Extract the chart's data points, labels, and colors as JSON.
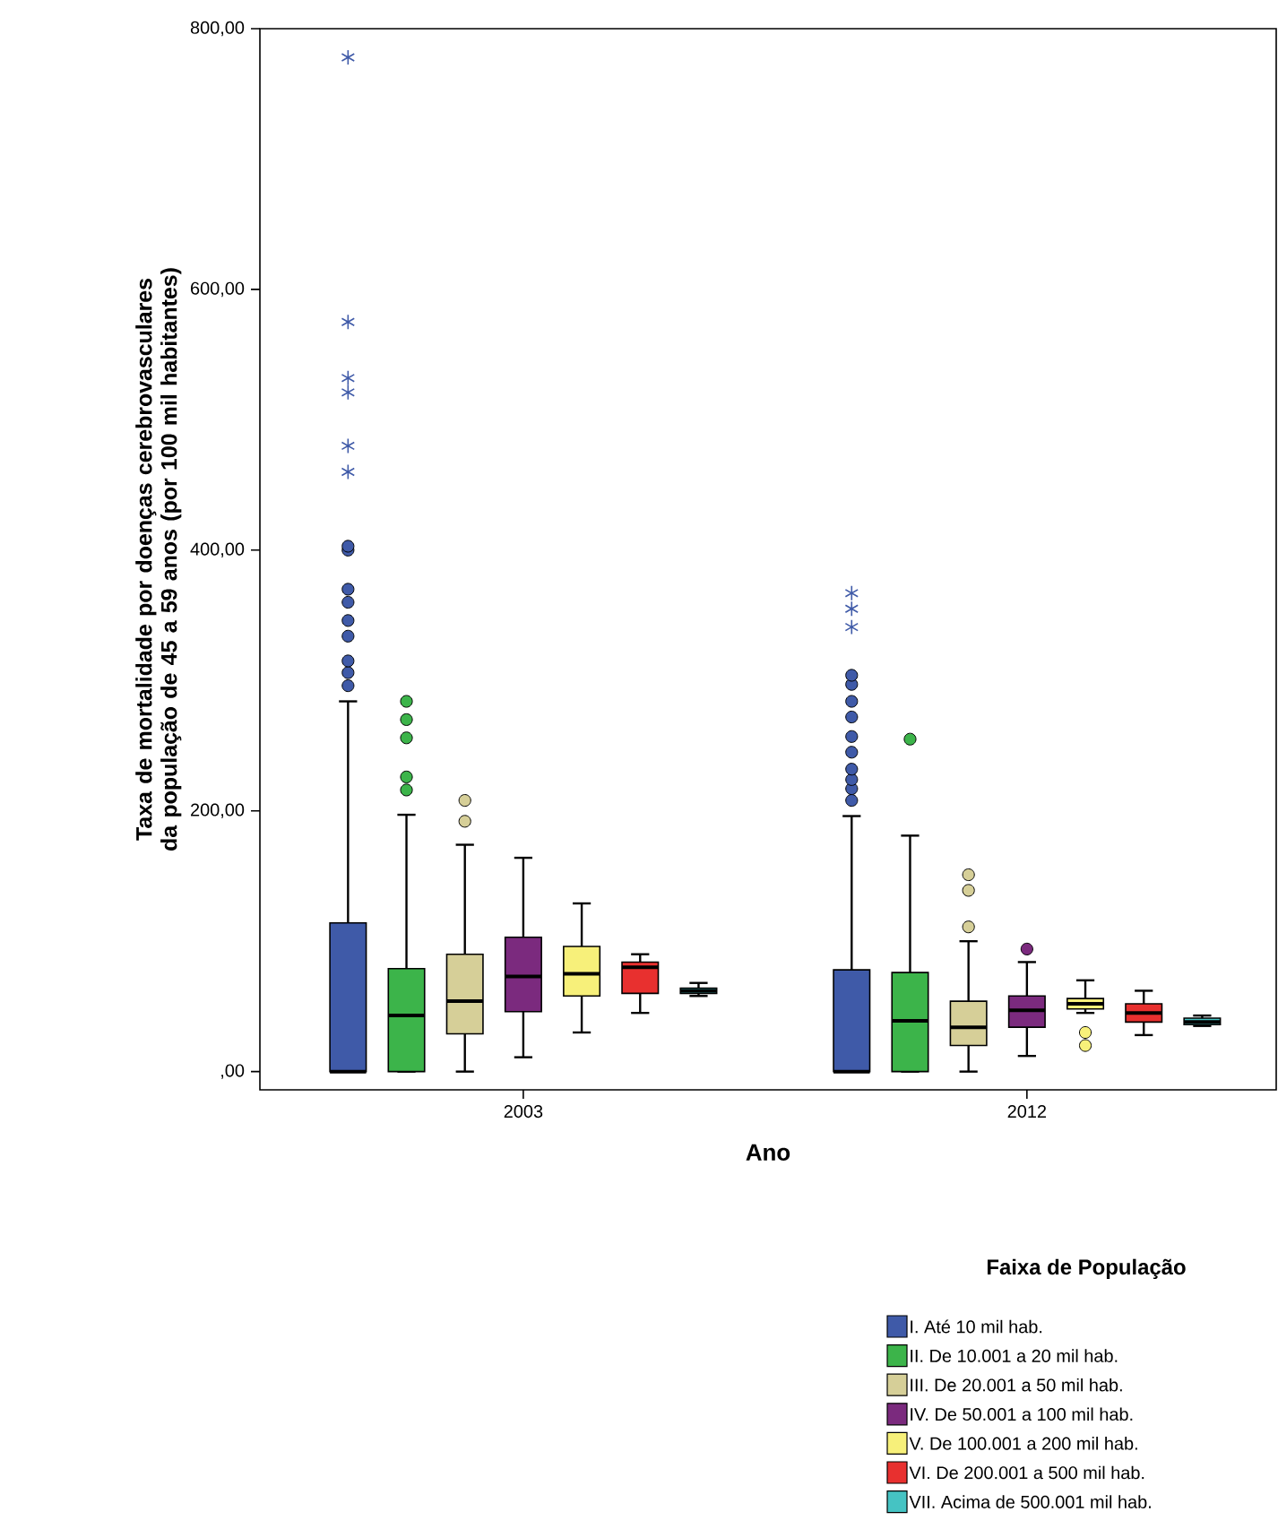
{
  "chart_data": {
    "type": "box",
    "xlabel": "Ano",
    "ylabel": "Taxa de mortalidade por doenças cerebrovasculares da população de 45 a 59 anos (por 100 mil habitantes)",
    "categories": [
      "2003",
      "2012"
    ],
    "ylim": [
      -14,
      800
    ],
    "yticks": [
      {
        "value": 0,
        "label": ",00"
      },
      {
        "value": 200,
        "label": "200,00"
      },
      {
        "value": 400,
        "label": "400,00"
      },
      {
        "value": 600,
        "label": "600,00"
      },
      {
        "value": 800,
        "label": "800,00"
      }
    ],
    "legend": "bottom right",
    "legend_title": "Faixa de População",
    "series": [
      {
        "name": "I. Até 10 mil hab.",
        "color": "#3f5aa8",
        "boxes": [
          {
            "low": 0,
            "q1": 0,
            "median": 0,
            "q3": 114,
            "high": 284,
            "outliers": [
              296,
              306,
              315,
              334,
              346,
              360,
              370,
              400,
              403,
              460,
              480,
              521,
              532,
              575,
              778
            ]
          },
          {
            "low": 0,
            "q1": 0,
            "median": 0,
            "q3": 78,
            "high": 196,
            "outliers": [
              208,
              217,
              224,
              232,
              245,
              257,
              272,
              284,
              297,
              304,
              341,
              355,
              367
            ]
          }
        ]
      },
      {
        "name": "II. De 10.001 a 20 mil hab.",
        "color": "#3cb44a",
        "boxes": [
          {
            "low": 0,
            "q1": 0,
            "median": 43,
            "q3": 79,
            "high": 197,
            "outliers": [
              216,
              226,
              256,
              270,
              284
            ]
          },
          {
            "low": 0,
            "q1": 0,
            "median": 39,
            "q3": 76,
            "high": 181,
            "outliers": [
              255
            ]
          }
        ]
      },
      {
        "name": "III. De 20.001 a 50 mil hab.",
        "color": "#d6cf98",
        "boxes": [
          {
            "low": 0,
            "q1": 29,
            "median": 54,
            "q3": 90,
            "high": 174,
            "outliers": [
              192,
              208
            ]
          },
          {
            "low": 0,
            "q1": 20,
            "median": 34,
            "q3": 54,
            "high": 100,
            "outliers": [
              111,
              139,
              151
            ]
          }
        ]
      },
      {
        "name": "IV. De 50.001 a 100 mil hab.",
        "color": "#7b2a7e",
        "boxes": [
          {
            "low": 11,
            "q1": 46,
            "median": 73,
            "q3": 103,
            "high": 164
          },
          {
            "low": 12,
            "q1": 34,
            "median": 47,
            "q3": 58,
            "high": 84,
            "outliers": [
              94
            ]
          }
        ]
      },
      {
        "name": "V. De 100.001 a 200 mil hab.",
        "color": "#f7f07a",
        "boxes": [
          {
            "low": 30,
            "q1": 58,
            "median": 75,
            "q3": 96,
            "high": 129
          },
          {
            "low": 45,
            "q1": 48,
            "median": 52,
            "q3": 56,
            "high": 70,
            "outliers": [
              20,
              30
            ]
          }
        ]
      },
      {
        "name": "VI. De 200.001 a 500 mil hab.",
        "color": "#e8302f",
        "boxes": [
          {
            "low": 45,
            "q1": 60,
            "median": 80,
            "q3": 84,
            "high": 90
          },
          {
            "low": 28,
            "q1": 38,
            "median": 45,
            "q3": 52,
            "high": 62
          }
        ]
      },
      {
        "name": "VII. Acima de 500.001 mil hab.",
        "color": "#45c3c3",
        "boxes": [
          {
            "low": 58,
            "q1": 60,
            "median": 62,
            "q3": 64,
            "high": 68
          },
          {
            "low": 35,
            "q1": 36,
            "median": 38,
            "q3": 41,
            "high": 43
          }
        ]
      }
    ]
  }
}
